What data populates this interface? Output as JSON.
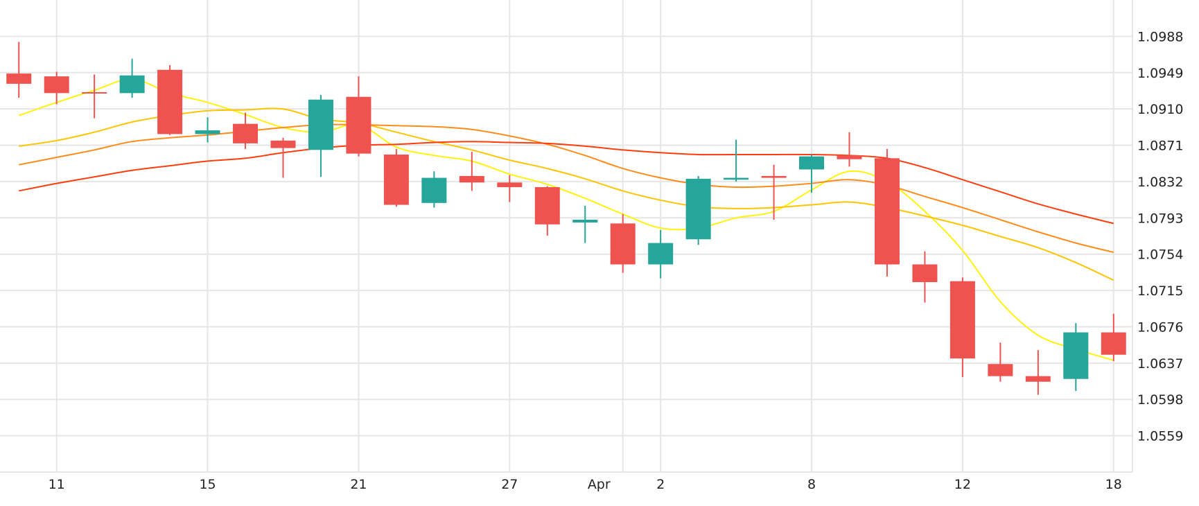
{
  "colors": {
    "up": "#26a69a",
    "down": "#ef5350",
    "ma_yellow": "#fff20c",
    "ma_gold": "#ffc400",
    "ma_orange": "#ff8c1a",
    "ma_red": "#ff3d0d",
    "grid": "#e6e6e6"
  },
  "chart_data": {
    "type": "candlestick",
    "grid": true,
    "ylim": [
      1.052,
      1.1027
    ],
    "xlim": [
      -0.5,
      29.5
    ],
    "y_ticks": [
      "1.0988",
      "1.0949",
      "1.0910",
      "1.0871",
      "1.0832",
      "1.0793",
      "1.0754",
      "1.0715",
      "1.0676",
      "1.0637",
      "1.0598",
      "1.0559"
    ],
    "x_ticks": [
      {
        "label": "11",
        "date": "2024-03-11"
      },
      {
        "label": "15",
        "date": "2024-03-15"
      },
      {
        "label": "21",
        "date": "2024-03-21"
      },
      {
        "label": "27",
        "date": "2024-03-27"
      },
      {
        "label": "Apr",
        "date": "2024-04-01"
      },
      {
        "label": "2",
        "date": "2024-04-02"
      },
      {
        "label": "8",
        "date": "2024-04-08"
      },
      {
        "label": "12",
        "date": "2024-04-12"
      },
      {
        "label": "18",
        "date": "2024-04-18"
      }
    ],
    "candles": [
      {
        "date": "2024-03-08",
        "open": 1.0948,
        "high": 1.0982,
        "low": 1.0922,
        "close": 1.0937
      },
      {
        "date": "2024-03-11",
        "open": 1.0945,
        "high": 1.095,
        "low": 1.0915,
        "close": 1.0927
      },
      {
        "date": "2024-03-12",
        "open": 1.0928,
        "high": 1.0947,
        "low": 1.09,
        "close": 1.0927
      },
      {
        "date": "2024-03-13",
        "open": 1.0927,
        "high": 1.0964,
        "low": 1.0922,
        "close": 1.0946
      },
      {
        "date": "2024-03-14",
        "open": 1.0952,
        "high": 1.0957,
        "low": 1.0882,
        "close": 1.0883
      },
      {
        "date": "2024-03-15",
        "open": 1.0883,
        "high": 1.0901,
        "low": 1.0874,
        "close": 1.0887
      },
      {
        "date": "2024-03-18",
        "open": 1.0894,
        "high": 1.0906,
        "low": 1.0867,
        "close": 1.0873
      },
      {
        "date": "2024-03-19",
        "open": 1.0876,
        "high": 1.0879,
        "low": 1.0836,
        "close": 1.0868
      },
      {
        "date": "2024-03-20",
        "open": 1.0866,
        "high": 1.0925,
        "low": 1.0837,
        "close": 1.092
      },
      {
        "date": "2024-03-21",
        "open": 1.0923,
        "high": 1.0945,
        "low": 1.0859,
        "close": 1.0862
      },
      {
        "date": "2024-03-22",
        "open": 1.0861,
        "high": 1.0867,
        "low": 1.0805,
        "close": 1.0807
      },
      {
        "date": "2024-03-25",
        "open": 1.0809,
        "high": 1.0843,
        "low": 1.0804,
        "close": 1.0836
      },
      {
        "date": "2024-03-26",
        "open": 1.0838,
        "high": 1.0864,
        "low": 1.0822,
        "close": 1.0831
      },
      {
        "date": "2024-03-27",
        "open": 1.0831,
        "high": 1.0839,
        "low": 1.081,
        "close": 1.0826
      },
      {
        "date": "2024-03-28",
        "open": 1.0826,
        "high": 1.0827,
        "low": 1.0774,
        "close": 1.0786
      },
      {
        "date": "2024-03-29",
        "open": 1.0788,
        "high": 1.0806,
        "low": 1.0766,
        "close": 1.0791
      },
      {
        "date": "2024-04-01",
        "open": 1.0787,
        "high": 1.0797,
        "low": 1.0734,
        "close": 1.0743
      },
      {
        "date": "2024-04-02",
        "open": 1.0743,
        "high": 1.078,
        "low": 1.0728,
        "close": 1.0766
      },
      {
        "date": "2024-04-03",
        "open": 1.077,
        "high": 1.0838,
        "low": 1.0764,
        "close": 1.0835
      },
      {
        "date": "2024-04-04",
        "open": 1.0834,
        "high": 1.0877,
        "low": 1.0832,
        "close": 1.0836
      },
      {
        "date": "2024-04-05",
        "open": 1.0838,
        "high": 1.085,
        "low": 1.0791,
        "close": 1.0836
      },
      {
        "date": "2024-04-08",
        "open": 1.0845,
        "high": 1.0861,
        "low": 1.082,
        "close": 1.0859
      },
      {
        "date": "2024-04-09",
        "open": 1.086,
        "high": 1.0885,
        "low": 1.0848,
        "close": 1.0856
      },
      {
        "date": "2024-04-10",
        "open": 1.0857,
        "high": 1.0867,
        "low": 1.073,
        "close": 1.0743
      },
      {
        "date": "2024-04-11",
        "open": 1.0743,
        "high": 1.0757,
        "low": 1.0702,
        "close": 1.0724
      },
      {
        "date": "2024-04-12",
        "open": 1.0725,
        "high": 1.0729,
        "low": 1.0622,
        "close": 1.0642
      },
      {
        "date": "2024-04-15",
        "open": 1.0636,
        "high": 1.0659,
        "low": 1.0617,
        "close": 1.0623
      },
      {
        "date": "2024-04-16",
        "open": 1.0623,
        "high": 1.0651,
        "low": 1.0603,
        "close": 1.0617
      },
      {
        "date": "2024-04-17",
        "open": 1.062,
        "high": 1.068,
        "low": 1.0607,
        "close": 1.067
      },
      {
        "date": "2024-04-18",
        "open": 1.067,
        "high": 1.069,
        "low": 1.0639,
        "close": 1.0646
      }
    ],
    "moving_averages": [
      {
        "color_key": "ma_yellow",
        "values": [
          1.0903,
          1.0917,
          1.093,
          1.0942,
          1.0927,
          1.0917,
          1.0904,
          1.089,
          1.0885,
          1.0893,
          1.0869,
          1.086,
          1.0854,
          1.084,
          1.0829,
          1.0814,
          1.0797,
          1.0782,
          1.0782,
          1.0793,
          1.08,
          1.0823,
          1.0843,
          1.0832,
          1.08,
          1.0758,
          1.0703,
          1.0667,
          1.0652,
          1.064
        ]
      },
      {
        "color_key": "ma_gold",
        "values": [
          1.087,
          1.0876,
          1.0885,
          1.0896,
          1.0903,
          1.0908,
          1.0909,
          1.091,
          1.0899,
          1.0895,
          1.0885,
          1.0875,
          1.0866,
          1.0855,
          1.0846,
          1.0835,
          1.0822,
          1.0812,
          1.0805,
          1.0803,
          1.0804,
          1.0807,
          1.081,
          1.0804,
          1.0795,
          1.0785,
          1.0773,
          1.0761,
          1.0745,
          1.0726
        ]
      },
      {
        "color_key": "ma_orange",
        "values": [
          1.085,
          1.0858,
          1.0866,
          1.0875,
          1.0879,
          1.0882,
          1.0886,
          1.089,
          1.0893,
          1.0893,
          1.0892,
          1.0891,
          1.0888,
          1.0881,
          1.0872,
          1.086,
          1.0846,
          1.0836,
          1.0829,
          1.0826,
          1.0827,
          1.083,
          1.0834,
          1.0828,
          1.0816,
          1.0804,
          1.0791,
          1.0778,
          1.0766,
          1.0756
        ]
      },
      {
        "color_key": "ma_red",
        "values": [
          1.0822,
          1.083,
          1.0837,
          1.0844,
          1.0849,
          1.0854,
          1.0857,
          1.0863,
          1.0868,
          1.0871,
          1.0872,
          1.0874,
          1.0875,
          1.0874,
          1.0873,
          1.087,
          1.0866,
          1.0863,
          1.0861,
          1.0861,
          1.0861,
          1.0861,
          1.086,
          1.0857,
          1.0847,
          1.0834,
          1.0821,
          1.0808,
          1.0797,
          1.0787
        ]
      }
    ]
  }
}
